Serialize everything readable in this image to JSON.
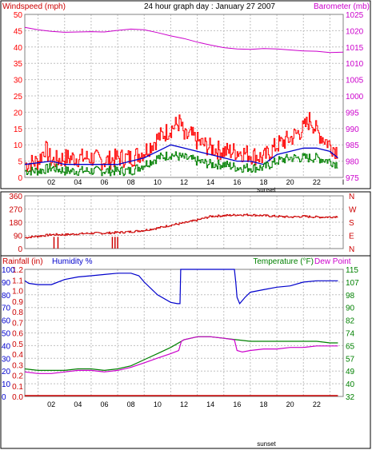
{
  "colors": {
    "wind": "#ff0000",
    "gust": "#008000",
    "avg": "#0000cc",
    "baro": "#cc00cc",
    "dir": "#cc0000",
    "rain": "#cc0000",
    "hum": "#0000cc",
    "temp": "#008000",
    "dew": "#cc00cc",
    "grid": "#c0c0c0",
    "frame": "#000000"
  },
  "chart_data": [
    {
      "type": "line",
      "title": "24 hour graph day : January 27 2007",
      "ylabel_left": "Windspeed (mph)",
      "ylabel_right": "Barometer (mb)",
      "x_ticks": [
        "02",
        "04",
        "06",
        "08",
        "10",
        "12",
        "14",
        "16",
        "18",
        "20",
        "22",
        "I"
      ],
      "annotation": "sunset",
      "y_left_ticks": [
        "0",
        "5",
        "10",
        "15",
        "20",
        "25",
        "30",
        "35",
        "40",
        "45",
        "50"
      ],
      "y_left_range": [
        0,
        50
      ],
      "y_right_ticks": [
        "975",
        "980",
        "985",
        "990",
        "995",
        "1000",
        "1005",
        "1010",
        "1015",
        "1020",
        "1025"
      ],
      "y_right_range": [
        975,
        1025
      ],
      "grid": true,
      "series": [
        {
          "key": "baro",
          "axis": "right",
          "points": [
            [
              0,
              1021.0
            ],
            [
              1,
              1020.3
            ],
            [
              2,
              1019.8
            ],
            [
              3,
              1019.5
            ],
            [
              4,
              1019.6
            ],
            [
              5,
              1019.7
            ],
            [
              6,
              1019.6
            ],
            [
              7,
              1020.1
            ],
            [
              8,
              1020.5
            ],
            [
              9,
              1020.3
            ],
            [
              10,
              1019.4
            ],
            [
              11,
              1018.4
            ],
            [
              12,
              1017.6
            ],
            [
              13,
              1016.5
            ],
            [
              14,
              1015.6
            ],
            [
              15,
              1014.8
            ],
            [
              16,
              1014.4
            ],
            [
              17,
              1014.3
            ],
            [
              18,
              1014.5
            ],
            [
              19,
              1014.4
            ],
            [
              20,
              1014.1
            ],
            [
              21,
              1013.8
            ],
            [
              22,
              1013.7
            ],
            [
              23,
              1013.3
            ],
            [
              24,
              1013.4
            ]
          ]
        },
        {
          "key": "wind",
          "axis": "left",
          "points": [
            [
              0,
              4
            ],
            [
              1,
              5
            ],
            [
              1.5,
              9
            ],
            [
              2,
              5
            ],
            [
              3,
              6
            ],
            [
              4,
              6
            ],
            [
              5,
              6
            ],
            [
              6,
              5
            ],
            [
              7,
              6
            ],
            [
              8,
              6
            ],
            [
              9,
              8
            ],
            [
              10,
              12
            ],
            [
              11,
              15
            ],
            [
              11.7,
              17
            ],
            [
              12,
              12
            ],
            [
              12.5,
              13
            ],
            [
              13,
              11
            ],
            [
              14,
              9
            ],
            [
              15,
              8
            ],
            [
              16,
              8
            ],
            [
              17,
              7
            ],
            [
              18,
              6
            ],
            [
              19,
              10
            ],
            [
              20,
              12
            ],
            [
              21,
              15
            ],
            [
              21.5,
              18
            ],
            [
              22,
              14
            ],
            [
              23,
              10
            ],
            [
              23.6,
              8
            ]
          ]
        },
        {
          "key": "avg",
          "axis": "left",
          "points": [
            [
              0,
              4
            ],
            [
              2,
              5
            ],
            [
              3,
              4
            ],
            [
              5,
              4
            ],
            [
              7,
              4
            ],
            [
              9,
              6
            ],
            [
              10,
              8
            ],
            [
              11,
              10
            ],
            [
              12,
              9
            ],
            [
              13,
              8
            ],
            [
              14,
              7
            ],
            [
              15,
              6
            ],
            [
              16,
              5
            ],
            [
              17,
              5
            ],
            [
              18,
              4
            ],
            [
              19,
              7
            ],
            [
              20,
              8
            ],
            [
              21,
              9
            ],
            [
              22,
              9
            ],
            [
              23,
              8
            ],
            [
              23.6,
              6
            ]
          ]
        },
        {
          "key": "gust",
          "axis": "left",
          "points": [
            [
              0,
              2
            ],
            [
              1,
              2
            ],
            [
              2,
              3
            ],
            [
              3,
              2
            ],
            [
              4,
              2
            ],
            [
              5,
              2
            ],
            [
              6,
              2
            ],
            [
              7,
              2
            ],
            [
              8,
              2
            ],
            [
              9,
              4
            ],
            [
              10,
              6
            ],
            [
              11,
              7
            ],
            [
              12,
              6
            ],
            [
              13,
              5
            ],
            [
              14,
              4
            ],
            [
              15,
              4
            ],
            [
              16,
              3
            ],
            [
              17,
              3
            ],
            [
              18,
              3
            ],
            [
              19,
              5
            ],
            [
              20,
              6
            ],
            [
              21,
              6
            ],
            [
              22,
              6
            ],
            [
              23,
              5
            ],
            [
              23.6,
              4
            ]
          ]
        }
      ]
    },
    {
      "type": "scatter",
      "title": "",
      "y_left_ticks": [
        "0",
        "90",
        "180",
        "270",
        "360"
      ],
      "y_left_range": [
        0,
        360
      ],
      "y_right_ticks": [
        "N",
        "E",
        "S",
        "W",
        "N"
      ],
      "grid": true,
      "series": [
        {
          "key": "dir",
          "points": [
            [
              0,
              75
            ],
            [
              1,
              85
            ],
            [
              2,
              95
            ],
            [
              3,
              95
            ],
            [
              4,
              100
            ],
            [
              5,
              105
            ],
            [
              6,
              105
            ],
            [
              7,
              110
            ],
            [
              8,
              115
            ],
            [
              9,
              125
            ],
            [
              10,
              140
            ],
            [
              11,
              160
            ],
            [
              12,
              175
            ],
            [
              13,
              195
            ],
            [
              14,
              220
            ],
            [
              15,
              225
            ],
            [
              16,
              230
            ],
            [
              17,
              230
            ],
            [
              18,
              225
            ],
            [
              19,
              220
            ],
            [
              20,
              215
            ],
            [
              21,
              220
            ],
            [
              22,
              215
            ],
            [
              23,
              215
            ],
            [
              23.6,
              220
            ]
          ]
        },
        {
          "key": "dir_spike",
          "points": [
            [
              2.2,
              0
            ],
            [
              2.5,
              0
            ],
            [
              6.6,
              0
            ],
            [
              6.8,
              0
            ],
            [
              7.0,
              0
            ]
          ]
        }
      ]
    },
    {
      "type": "line",
      "title": "",
      "ylabel_left": "Rainfall (in)",
      "ylabel_left2": "Humidity %",
      "ylabel_right": "Temperature (°F)",
      "ylabel_right2": "Dew Point",
      "x_ticks": [
        "02",
        "04",
        "06",
        "08",
        "10",
        "12",
        "14",
        "16",
        "18",
        "20",
        "22"
      ],
      "annotation": "sunset",
      "y_left_ticks": [
        "0.0",
        "0.1",
        "0.2",
        "0.3",
        "0.4",
        "0.5",
        "0.6",
        "0.7",
        "0.8",
        "0.9",
        "1.0",
        "1.1",
        "1.2"
      ],
      "y_left_ticks_humidity": [
        "0",
        "10",
        "20",
        "30",
        "40",
        "50",
        "60",
        "70",
        "80",
        "90",
        "100"
      ],
      "y_right_ticks": [
        "32",
        "40",
        "49",
        "57",
        "65",
        "74",
        "82",
        "90",
        "98",
        "107",
        "115"
      ],
      "y_right_range": [
        32,
        115
      ],
      "grid": true,
      "series": [
        {
          "key": "hum",
          "axis": "left",
          "unit": "%",
          "points": [
            [
              0,
              91
            ],
            [
              0.3,
              89
            ],
            [
              1,
              88
            ],
            [
              2,
              88
            ],
            [
              3,
              92
            ],
            [
              4,
              94
            ],
            [
              5,
              95
            ],
            [
              6,
              96
            ],
            [
              7,
              97
            ],
            [
              8,
              97
            ],
            [
              8.6,
              95
            ],
            [
              9,
              90
            ],
            [
              10,
              80
            ],
            [
              11,
              74
            ],
            [
              11.5,
              73
            ],
            [
              11.7,
              73
            ],
            [
              11.75,
              100
            ],
            [
              12,
              100
            ],
            [
              13,
              100
            ],
            [
              14,
              100
            ],
            [
              15,
              100
            ],
            [
              15.8,
              100
            ],
            [
              15.9,
              90
            ],
            [
              16,
              78
            ],
            [
              16.2,
              73
            ],
            [
              16.6,
              78
            ],
            [
              17,
              82
            ],
            [
              18,
              84
            ],
            [
              19,
              86
            ],
            [
              20,
              87
            ],
            [
              21,
              90
            ],
            [
              22,
              91
            ],
            [
              23,
              91
            ],
            [
              23.6,
              91
            ]
          ]
        },
        {
          "key": "temp",
          "axis": "right",
          "unit": "F",
          "points": [
            [
              0,
              50
            ],
            [
              1,
              49
            ],
            [
              2,
              49
            ],
            [
              3,
              49
            ],
            [
              4,
              50
            ],
            [
              5,
              50
            ],
            [
              6,
              49
            ],
            [
              7,
              50
            ],
            [
              8,
              52
            ],
            [
              9,
              56
            ],
            [
              10,
              60
            ],
            [
              11,
              64
            ],
            [
              12,
              69
            ],
            [
              13,
              71
            ],
            [
              14,
              71
            ],
            [
              15,
              70
            ],
            [
              16,
              69
            ],
            [
              17,
              68
            ],
            [
              18,
              68
            ],
            [
              19,
              68
            ],
            [
              20,
              68
            ],
            [
              21,
              68
            ],
            [
              22,
              68
            ],
            [
              23,
              67
            ],
            [
              23.6,
              67
            ]
          ]
        },
        {
          "key": "dew",
          "axis": "right",
          "unit": "F",
          "points": [
            [
              0,
              48
            ],
            [
              1,
              47
            ],
            [
              2,
              47
            ],
            [
              3,
              48
            ],
            [
              4,
              49
            ],
            [
              5,
              49
            ],
            [
              6,
              48
            ],
            [
              7,
              49
            ],
            [
              8,
              51
            ],
            [
              9,
              54
            ],
            [
              10,
              57
            ],
            [
              11,
              60
            ],
            [
              11.6,
              62
            ],
            [
              11.8,
              68
            ],
            [
              12,
              69
            ],
            [
              13,
              71
            ],
            [
              14,
              71
            ],
            [
              15,
              70
            ],
            [
              15.8,
              69
            ],
            [
              16,
              62
            ],
            [
              16.4,
              61
            ],
            [
              17,
              62
            ],
            [
              18,
              63
            ],
            [
              19,
              63
            ],
            [
              20,
              64
            ],
            [
              21,
              64
            ],
            [
              22,
              65
            ],
            [
              23,
              65
            ],
            [
              23.6,
              65
            ]
          ]
        },
        {
          "key": "rain",
          "axis": "left",
          "unit": "in",
          "points": [
            [
              0,
              0
            ],
            [
              23.6,
              0
            ]
          ]
        }
      ]
    }
  ]
}
